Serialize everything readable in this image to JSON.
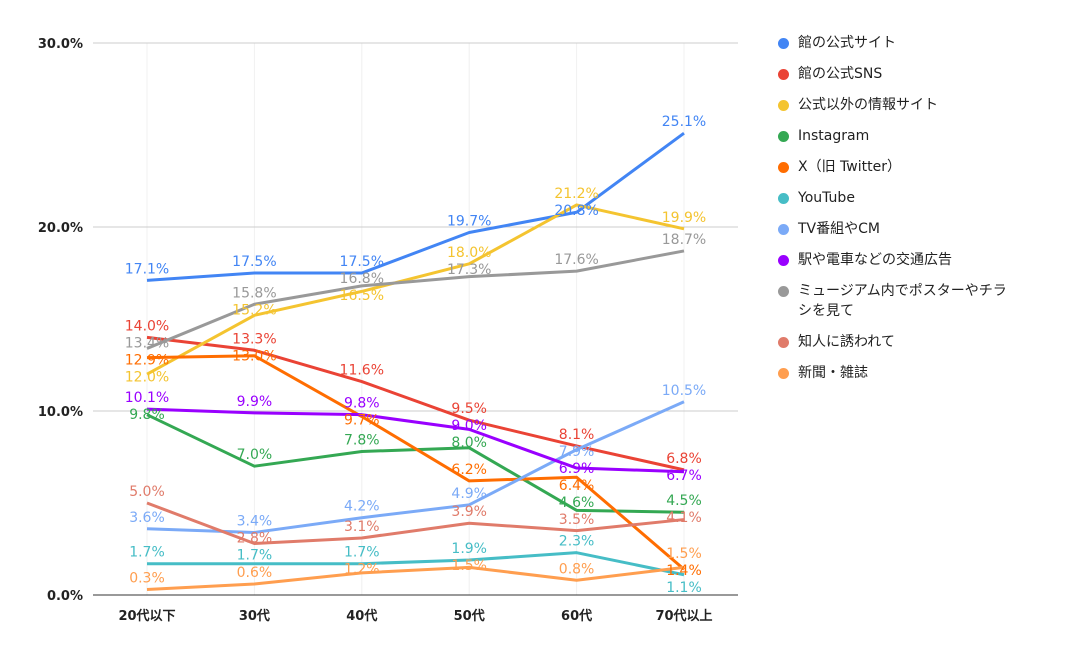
{
  "chart_data": {
    "type": "line",
    "categories": [
      "20代以下",
      "30代",
      "40代",
      "50代",
      "60代",
      "70代以上"
    ],
    "ylim": [
      0,
      30
    ],
    "yticks": [
      "0.0%",
      "10.0%",
      "20.0%",
      "30.0%"
    ],
    "grid": true,
    "legend_position": "right",
    "series": [
      {
        "name": "館の公式サイト",
        "color": "#4285f4",
        "values": [
          17.1,
          17.5,
          17.5,
          19.7,
          20.8,
          25.1
        ]
      },
      {
        "name": "館の公式SNS",
        "color": "#ea4335",
        "values": [
          14.0,
          13.3,
          11.6,
          9.5,
          8.1,
          6.8
        ]
      },
      {
        "name": "公式以外の情報サイト",
        "color": "#f4c430",
        "values": [
          12.0,
          15.2,
          16.5,
          18.0,
          21.2,
          19.9
        ]
      },
      {
        "name": "Instagram",
        "color": "#34a853",
        "values": [
          9.8,
          7.0,
          7.8,
          8.0,
          4.6,
          4.5
        ]
      },
      {
        "name": "X（旧 Twitter）",
        "color": "#ff6d01",
        "values": [
          12.9,
          13.0,
          9.7,
          6.2,
          6.4,
          1.4
        ]
      },
      {
        "name": "YouTube",
        "color": "#46bdc6",
        "values": [
          1.7,
          1.7,
          1.7,
          1.9,
          2.3,
          1.1
        ]
      },
      {
        "name": "TV番組やCM",
        "color": "#7baaf7",
        "values": [
          3.6,
          3.4,
          4.2,
          4.9,
          7.9,
          10.5
        ]
      },
      {
        "name": "駅や電車などの交通広告",
        "color": "#9900ff",
        "values": [
          10.1,
          9.9,
          9.8,
          9.0,
          6.9,
          6.7
        ]
      },
      {
        "name": "ミュージアム内でポスターやチラシを見て",
        "color": "#999999",
        "values": [
          13.4,
          15.8,
          16.8,
          17.3,
          17.6,
          18.7
        ]
      },
      {
        "name": "知人に誘われて",
        "color": "#e07b6a",
        "values": [
          5.0,
          2.8,
          3.1,
          3.9,
          3.5,
          4.1
        ]
      },
      {
        "name": "新聞・雑誌",
        "color": "#ff9e4f",
        "values": [
          0.3,
          0.6,
          1.2,
          1.5,
          0.8,
          1.5
        ]
      }
    ]
  }
}
